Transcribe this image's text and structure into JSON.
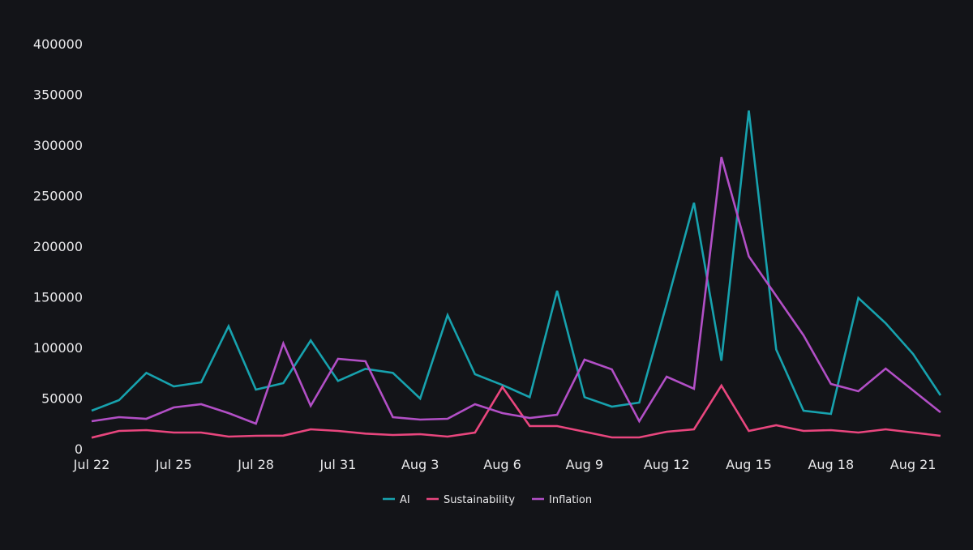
{
  "chart_data": {
    "type": "line",
    "title": "",
    "xlabel": "",
    "ylabel": "",
    "ylim": [
      0,
      400000
    ],
    "y_ticks": [
      "0",
      "50000",
      "100000",
      "150000",
      "200000",
      "250000",
      "300000",
      "350000",
      "400000"
    ],
    "y_tick_values": [
      0,
      50000,
      100000,
      150000,
      200000,
      250000,
      300000,
      350000,
      400000
    ],
    "x": [
      "Jul 22",
      "Jul 23",
      "Jul 24",
      "Jul 25",
      "Jul 26",
      "Jul 27",
      "Jul 28",
      "Jul 29",
      "Jul 30",
      "Jul 31",
      "Aug 1",
      "Aug 2",
      "Aug 3",
      "Aug 4",
      "Aug 5",
      "Aug 6",
      "Aug 7",
      "Aug 8",
      "Aug 9",
      "Aug 10",
      "Aug 11",
      "Aug 12",
      "Aug 13",
      "Aug 14",
      "Aug 15",
      "Aug 16",
      "Aug 17",
      "Aug 18",
      "Aug 19",
      "Aug 20",
      "Aug 21",
      "Aug 22"
    ],
    "x_ticks": [
      "Jul 22",
      "Jul 25",
      "Jul 28",
      "Jul 31",
      "Aug 3",
      "Aug 6",
      "Aug 9",
      "Aug 12",
      "Aug 15",
      "Aug 18",
      "Aug 21"
    ],
    "grid": false,
    "legend_position": "bottom",
    "series": [
      {
        "name": "AI",
        "color": "#17a2ae",
        "values": [
          37600,
          48000,
          75000,
          61600,
          65600,
          121000,
          58400,
          64800,
          107000,
          67000,
          79000,
          75000,
          49600,
          132000,
          73600,
          63000,
          51000,
          156000,
          51000,
          41600,
          45600,
          143000,
          243000,
          87000,
          334000,
          98000,
          37600,
          34400,
          149000,
          124000,
          93600,
          52800
        ]
      },
      {
        "name": "Sustainability",
        "color": "#e9467e",
        "values": [
          11000,
          17600,
          18400,
          16000,
          16000,
          12000,
          12800,
          13000,
          19200,
          17600,
          15000,
          13600,
          14400,
          12000,
          16000,
          61000,
          22400,
          22400,
          16800,
          11200,
          11200,
          16800,
          19200,
          62400,
          17600,
          23200,
          17600,
          18400,
          16000,
          19200,
          16000,
          12800
        ]
      },
      {
        "name": "Inflation",
        "color": "#b24fc6",
        "values": [
          27200,
          31200,
          29600,
          40800,
          44000,
          35200,
          24800,
          104000,
          42400,
          88800,
          86400,
          31200,
          28800,
          29600,
          44000,
          35200,
          30400,
          33600,
          88000,
          78400,
          27200,
          71200,
          59200,
          288000,
          190000,
          151000,
          112000,
          64000,
          56800,
          79200,
          57600,
          36000
        ]
      }
    ]
  }
}
